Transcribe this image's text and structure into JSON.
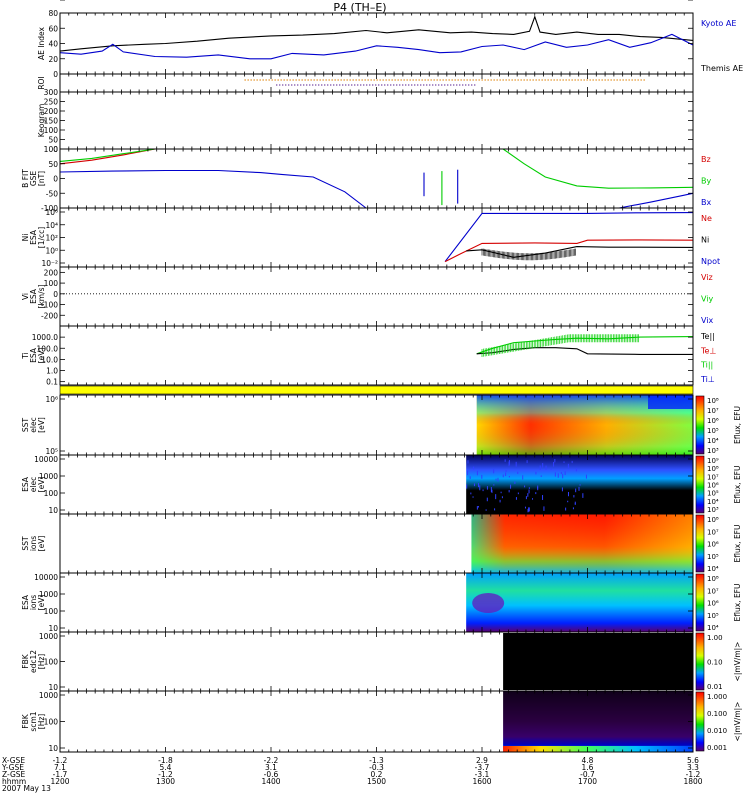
{
  "title": "P4 (TH–E)",
  "colors": {
    "frame": "#000000",
    "red": "#d40000",
    "green": "#00cc00",
    "blue": "#0000cc",
    "orange": "#e08000",
    "purple": "#663399",
    "yellow": "#ffff00"
  },
  "chart_data": {
    "type": "line",
    "title": "P4 (TH–E)",
    "x_range_hours": [
      12,
      18
    ],
    "x_ticks": [
      "1200",
      "1300",
      "1400",
      "1500",
      "1600",
      "1700",
      "1800"
    ],
    "footer": {
      "row_labels": [
        "X-GSE",
        "Y-GSE",
        "Z-GSE",
        "hhmm",
        "2007 May 13"
      ],
      "columns": [
        [
          "-1.2",
          "7.1",
          "-1.7",
          "1200"
        ],
        [
          "-1.8",
          "5.4",
          "-1.2",
          "1300"
        ],
        [
          "-2.2",
          "3.1",
          "-0.6",
          "1400"
        ],
        [
          "-1.3",
          "-0.3",
          "0.2",
          "1500"
        ],
        [
          "2.9",
          "-3.7",
          "-3.1",
          "1600"
        ],
        [
          "4.8",
          "1.6",
          "-0.7",
          "1700"
        ],
        [
          "5.6",
          "3.3",
          "-1.2",
          "1800"
        ]
      ]
    },
    "panels": [
      {
        "id": "ae",
        "ylabel": "AE Index",
        "ylim": [
          0,
          80
        ],
        "yticks": [
          "0",
          "20",
          "40",
          "60",
          "80"
        ],
        "legend": [
          {
            "text": "Kyoto AE",
            "color": "#0000cc"
          },
          {
            "text": "Themis AE",
            "color": "#000000"
          }
        ],
        "series": [
          {
            "name": "Themis AE",
            "color": "#000000",
            "x": [
              12.0,
              12.2,
              12.5,
              12.8,
              13.0,
              13.3,
              13.6,
              14.0,
              14.3,
              14.6,
              14.9,
              15.1,
              15.4,
              15.7,
              15.9,
              16.1,
              16.3,
              16.45,
              16.5,
              16.55,
              16.7,
              16.9,
              17.1,
              17.3,
              17.5,
              17.7,
              18.0
            ],
            "y": [
              30,
              33,
              37,
              39,
              40,
              43,
              47,
              50,
              51,
              53,
              57,
              54,
              58,
              54,
              55,
              53,
              52,
              56,
              75,
              55,
              52,
              55,
              52,
              52,
              49,
              48,
              44
            ]
          },
          {
            "name": "Kyoto AE",
            "color": "#0000cc",
            "x": [
              12.0,
              12.2,
              12.4,
              12.5,
              12.6,
              12.9,
              13.2,
              13.5,
              13.8,
              14.0,
              14.2,
              14.5,
              14.8,
              15.0,
              15.2,
              15.4,
              15.6,
              15.8,
              16.0,
              16.2,
              16.4,
              16.6,
              16.8,
              17.0,
              17.2,
              17.4,
              17.6,
              17.8,
              18.0
            ],
            "y": [
              28,
              26,
              30,
              39,
              29,
              23,
              22,
              25,
              20,
              20,
              27,
              25,
              30,
              37,
              35,
              32,
              28,
              29,
              36,
              38,
              32,
              42,
              35,
              38,
              45,
              35,
              41,
              52,
              38
            ]
          }
        ]
      },
      {
        "id": "roi",
        "ylabel": "ROI",
        "rows": [
          {
            "name": "orange-dots",
            "color": "#e08000",
            "start": 13.75,
            "end": 17.55
          },
          {
            "name": "purple-dots",
            "color": "#663399",
            "start": 14.05,
            "end": 15.95
          }
        ]
      },
      {
        "id": "keogram",
        "ylabel": "Keogram",
        "ylim": [
          0,
          300
        ],
        "yticks": [
          "0",
          "50",
          "100",
          "150",
          "200",
          "250",
          "300"
        ]
      },
      {
        "id": "bfit",
        "ylabel": "B FIT\nGSE\n[nT]",
        "ylim": [
          -100,
          100
        ],
        "yticks": [
          "-100",
          "-50",
          "0",
          "50",
          "100"
        ],
        "legend": [
          {
            "text": "Bz",
            "color": "#d40000"
          },
          {
            "text": "By",
            "color": "#00cc00"
          },
          {
            "text": "Bx",
            "color": "#0000cc"
          }
        ],
        "series": [
          {
            "name": "Bz",
            "color": "#d40000",
            "x": [
              12.0,
              12.3,
              12.6,
              12.9
            ],
            "y": [
              50,
              62,
              80,
              100
            ]
          },
          {
            "name": "By",
            "color": "#00cc00",
            "x": [
              12.0,
              12.3,
              12.6,
              12.9
            ],
            "y": [
              58,
              68,
              84,
              100
            ]
          },
          {
            "name": "Bx blue segment 1",
            "color": "#0000cc",
            "x": [
              12.0,
              12.5,
              13.0,
              13.5,
              13.9,
              14.1,
              14.4,
              14.7,
              14.9
            ],
            "y": [
              22,
              25,
              27,
              27,
              20,
              14,
              5,
              -45,
              -100
            ]
          },
          {
            "name": "Bx blue segment 2",
            "color": "#0000cc",
            "x": [
              17.3,
              17.6,
              17.9,
              18.0
            ],
            "y": [
              -100,
              -80,
              -58,
              -50
            ]
          },
          {
            "name": "By green recovery",
            "color": "#00cc00",
            "x": [
              16.2,
              16.4,
              16.6,
              16.9,
              17.2,
              17.6,
              18.0
            ],
            "y": [
              100,
              50,
              5,
              -25,
              -33,
              -32,
              -30
            ]
          },
          {
            "name": "spike blue A",
            "color": "#0000cc",
            "x": [
              15.45,
              15.45
            ],
            "y": [
              -60,
              20
            ]
          },
          {
            "name": "spike green",
            "color": "#00cc00",
            "x": [
              15.62,
              15.62
            ],
            "y": [
              -90,
              25
            ]
          },
          {
            "name": "spike blue B",
            "color": "#0000cc",
            "x": [
              15.77,
              15.77
            ],
            "y": [
              -85,
              30
            ]
          }
        ]
      },
      {
        "id": "ni",
        "ylabel": "Ni\nESA\n[1/cc]",
        "ylim_log": [
          -4,
          7
        ],
        "yticks": [
          "10⁻²",
          "10⁰",
          "10²",
          "10⁴",
          "10⁶"
        ],
        "legend": [
          {
            "text": "Ne",
            "color": "#d40000"
          },
          {
            "text": "Ni",
            "color": "#000000"
          },
          {
            "text": "Npot",
            "color": "#0000cc"
          }
        ],
        "series": [
          {
            "name": "Npot",
            "color": "#0000cc",
            "x": [
              15.65,
              16.0,
              17.0,
              17.5,
              18.0
            ],
            "y_log10": [
              -3,
              6,
              6,
              6.1,
              6.15
            ]
          },
          {
            "name": "Ne",
            "color": "#d40000",
            "x": [
              15.65,
              15.8,
              16.0,
              16.5,
              16.9,
              17.0,
              17.5,
              18.0
            ],
            "y_log10": [
              -3,
              -1.5,
              0.4,
              0.5,
              0.4,
              1.0,
              1.05,
              1.0
            ]
          },
          {
            "name": "Ni",
            "color": "#000000",
            "x": [
              15.85,
              16.0,
              16.3,
              16.6,
              16.9,
              17.2,
              17.5,
              18.0
            ],
            "y_log10": [
              -1.0,
              -0.8,
              -2.2,
              -1.4,
              -0.2,
              -0.3,
              -0.3,
              -0.35
            ]
          }
        ]
      },
      {
        "id": "vi",
        "ylabel": "Vi\nESA\n[km/s]",
        "ylim": [
          -300,
          250
        ],
        "yticks": [
          "-200",
          "-100",
          "0",
          "100",
          "200"
        ],
        "legend": [
          {
            "text": "Viz",
            "color": "#d40000"
          },
          {
            "text": "Viy",
            "color": "#00cc00"
          },
          {
            "text": "Vix",
            "color": "#0000cc"
          }
        ]
      },
      {
        "id": "ti",
        "ylabel": "Ti\nESA\n[eV]",
        "ylim_log": [
          -1.3,
          4.0
        ],
        "yticks": [
          "0.1",
          "1.0",
          "10.0",
          "100.0",
          "1000.0"
        ],
        "legend": [
          {
            "text": "Te||",
            "color": "#000000"
          },
          {
            "text": "Te⊥",
            "color": "#d40000"
          },
          {
            "text": "Ti||",
            "color": "#00cc00"
          },
          {
            "text": "Ti⊥",
            "color": "#0000cc"
          }
        ],
        "series": [
          {
            "name": "Ti",
            "color": "#00cc00",
            "x": [
              15.95,
              16.1,
              16.3,
              16.5,
              16.7,
              16.9,
              17.2,
              17.5,
              18.0
            ],
            "y_log10": [
              1.5,
              2.0,
              2.5,
              2.65,
              2.8,
              2.9,
              2.85,
              3.0,
              3.05
            ]
          },
          {
            "name": "Te",
            "color": "#000000",
            "x": [
              15.95,
              16.1,
              16.3,
              16.5,
              16.7,
              16.9,
              17.0,
              17.5,
              18.0
            ],
            "y_log10": [
              1.5,
              1.6,
              1.9,
              2.05,
              2.05,
              1.95,
              1.5,
              1.45,
              1.45
            ]
          }
        ]
      },
      {
        "id": "strip",
        "color": "#ffff00"
      },
      {
        "id": "sst-e",
        "ylabel": "SST\nelec\n[eV]",
        "yticks": [
          "10⁵",
          "10⁶"
        ],
        "start_hour": 15.95,
        "colorbar": {
          "ticks": [
            "10⁸",
            "10⁷",
            "10⁶",
            "10⁵",
            "10⁴",
            "10³"
          ],
          "label": "Eflux, EFU"
        }
      },
      {
        "id": "esa-e",
        "ylabel": "ESA\nelec\n[eV]",
        "yticks": [
          "10",
          "100",
          "1000",
          "10000"
        ],
        "start_hour": 15.85,
        "colorbar": {
          "ticks": [
            "10⁹",
            "10⁸",
            "10⁷",
            "10⁶",
            "10⁵",
            "10⁴",
            "10³"
          ],
          "label": "Eflux, EFU"
        }
      },
      {
        "id": "sst-i",
        "ylabel": "SST\nions\n[eV]",
        "yticks": [
          "10⁵"
        ],
        "start_hour": 15.9,
        "colorbar": {
          "ticks": [
            "10⁸",
            "10⁷",
            "10⁶",
            "10⁵",
            "10⁴"
          ],
          "label": "Eflux, EFU"
        }
      },
      {
        "id": "esa-i",
        "ylabel": "ESA\nions\n[eV]",
        "yticks": [
          "10",
          "100",
          "1000",
          "10000"
        ],
        "start_hour": 15.85,
        "colorbar": {
          "ticks": [
            "10⁸",
            "10⁷",
            "10⁶",
            "10⁵",
            "10⁴"
          ],
          "label": "Eflux, EFU"
        }
      },
      {
        "id": "fbk-e",
        "ylabel": "FBK\nedc12\n[Hz]",
        "yticks": [
          "10",
          "100",
          "1000"
        ],
        "start_hour": 16.2,
        "colorbar": {
          "ticks": [
            "1.00",
            "0.10",
            "0.01"
          ],
          "label": "<|mV/m|>"
        }
      },
      {
        "id": "fbk-b",
        "ylabel": "FBK\nscm1\n[Hz]",
        "yticks": [
          "10",
          "100",
          "1000"
        ],
        "start_hour": 16.2,
        "colorbar": {
          "ticks": [
            "1.000",
            "0.100",
            "0.010",
            "0.001"
          ],
          "label": "<|mV/m|>"
        }
      }
    ]
  }
}
